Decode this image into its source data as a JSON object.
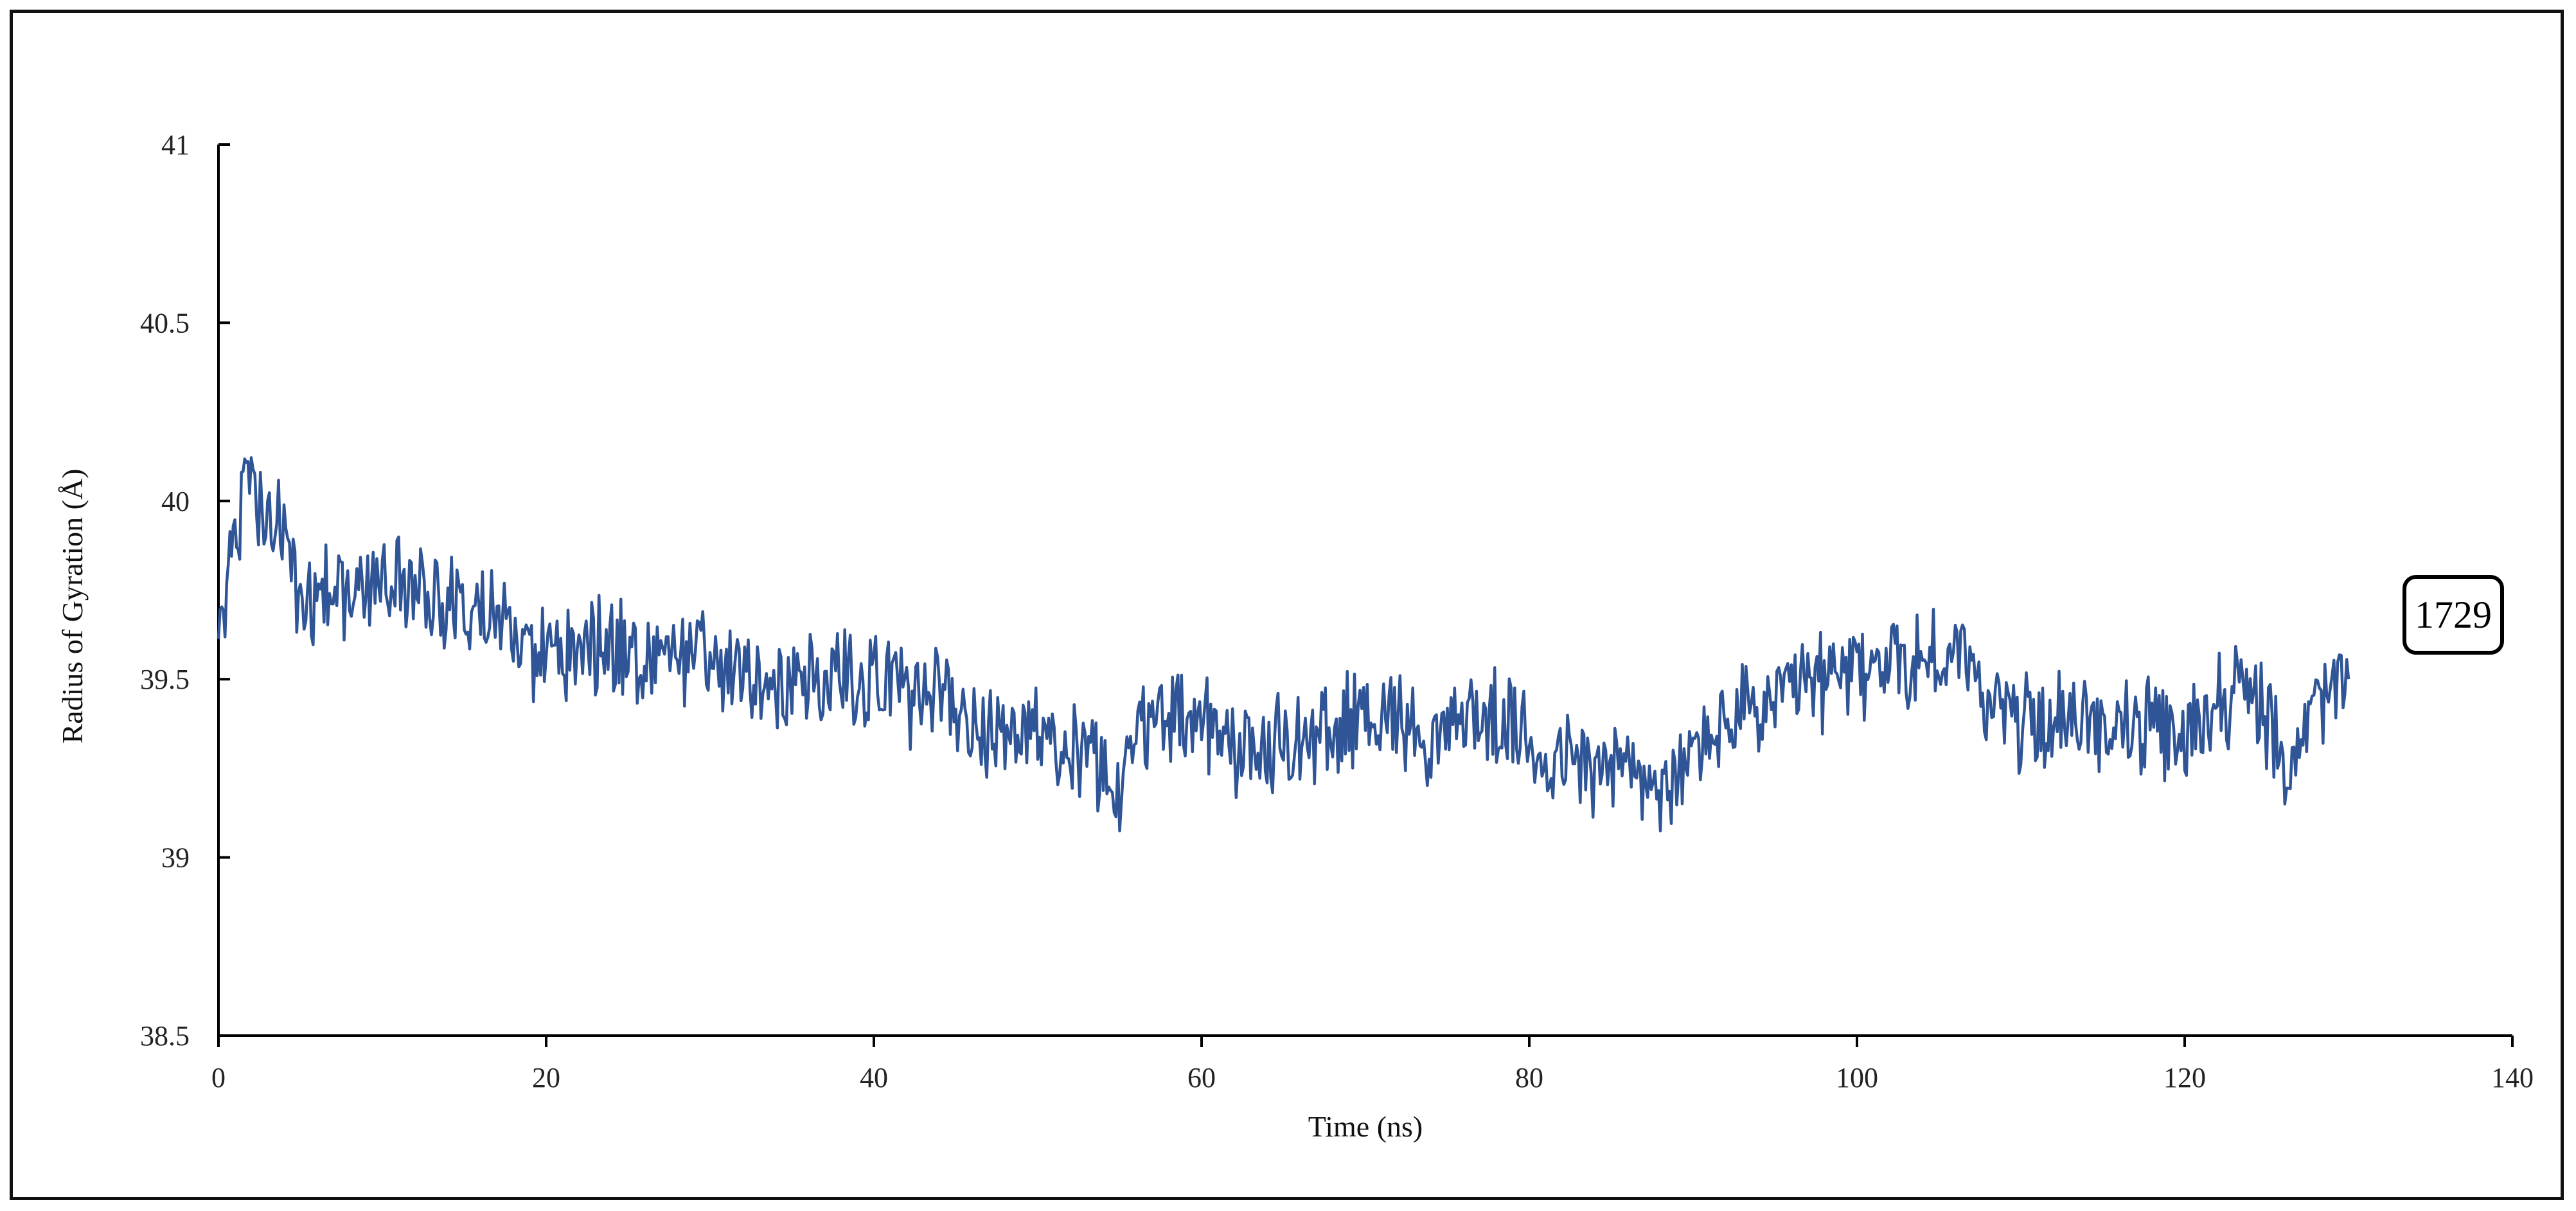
{
  "chart_data": {
    "type": "line",
    "xlabel": "Time (ns)",
    "ylabel": "Radius of Gyration (Å)",
    "xlim": [
      0,
      140
    ],
    "ylim": [
      38.5,
      41
    ],
    "xticks": [
      0,
      20,
      40,
      60,
      80,
      100,
      120,
      140
    ],
    "xtick_labels": [
      "0",
      "20",
      "40",
      "60",
      "80",
      "100",
      "120",
      "140"
    ],
    "yticks": [
      38.5,
      39,
      39.5,
      40,
      40.5,
      41
    ],
    "ytick_labels": [
      "38.5",
      "39",
      "39.5",
      "40",
      "40.5",
      "41"
    ],
    "grid": false,
    "annotation": "1729",
    "series": [
      {
        "color": "#2f5597",
        "x": [
          0,
          0.5,
          1,
          1.5,
          2,
          3,
          4,
          5,
          6,
          8,
          10,
          12,
          14,
          16,
          18,
          20,
          22,
          24,
          26,
          28,
          30,
          32,
          34,
          36,
          38,
          40,
          42,
          44,
          46,
          48,
          50,
          52,
          54,
          55,
          56,
          58,
          60,
          62,
          64,
          66,
          68,
          70,
          72,
          74,
          76,
          78,
          80,
          82,
          84,
          86,
          88,
          89,
          90,
          92,
          94,
          96,
          98,
          100,
          102,
          104,
          106,
          108,
          110,
          112,
          114,
          116,
          118,
          120,
          122,
          124,
          126,
          128,
          130
        ],
        "y": [
          39.6,
          39.78,
          39.85,
          40.02,
          40.05,
          39.95,
          39.9,
          39.72,
          39.72,
          39.75,
          39.77,
          39.75,
          39.7,
          39.7,
          39.62,
          39.55,
          39.58,
          39.6,
          39.58,
          39.55,
          39.55,
          39.5,
          39.48,
          39.48,
          39.52,
          39.5,
          39.45,
          39.48,
          39.38,
          39.33,
          39.32,
          39.3,
          39.28,
          39.18,
          39.35,
          39.4,
          39.38,
          39.32,
          39.3,
          39.33,
          39.35,
          39.42,
          39.4,
          39.32,
          39.4,
          39.38,
          39.32,
          39.28,
          39.25,
          39.25,
          39.2,
          39.18,
          39.3,
          39.38,
          39.42,
          39.45,
          39.5,
          39.52,
          39.55,
          39.55,
          39.58,
          39.45,
          39.38,
          39.38,
          39.38,
          39.38,
          39.35,
          39.32,
          39.45,
          39.48,
          39.25,
          39.42,
          39.5
        ]
      }
    ]
  }
}
